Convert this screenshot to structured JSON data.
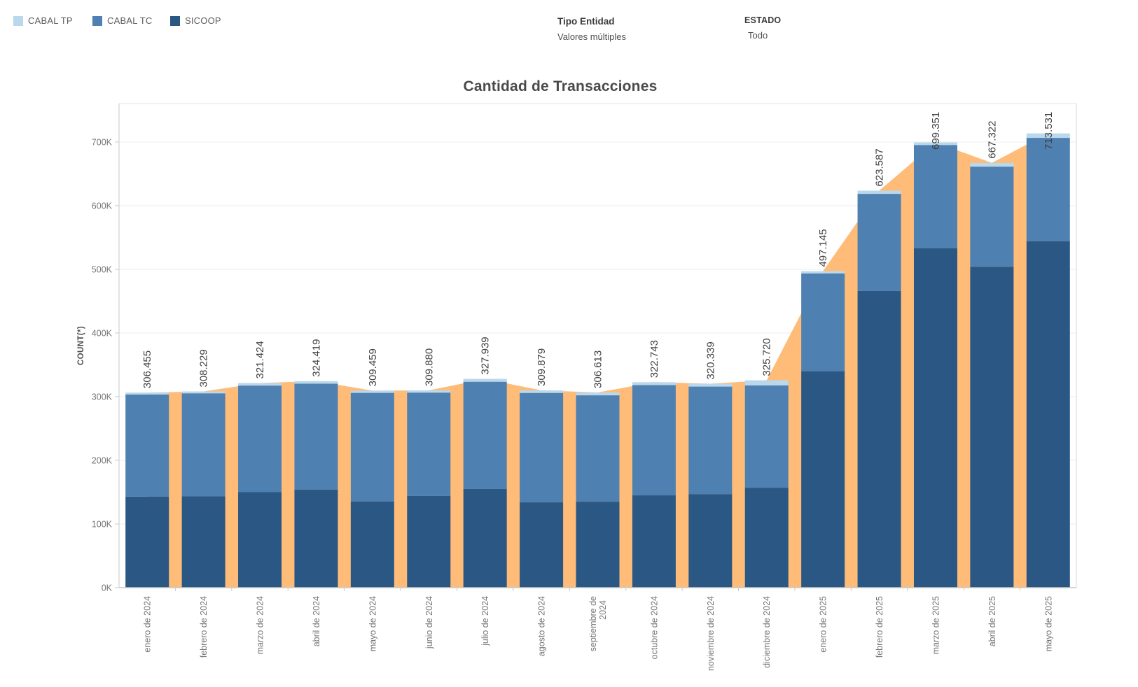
{
  "legend": {
    "items": [
      {
        "label": "CABAL TP",
        "color": "#B9D8EC"
      },
      {
        "label": "CABAL TC",
        "color": "#4E80B1"
      },
      {
        "label": "SICOOP",
        "color": "#2A5784"
      }
    ]
  },
  "filters": {
    "tipo_entidad": {
      "label": "Tipo Entidad",
      "value": "Valores múltiples"
    },
    "estado": {
      "label": "ESTADO",
      "value": "Todo"
    }
  },
  "chart_data": {
    "type": "bar",
    "subtype": "stacked-bars-with-area-overlay",
    "title": "Cantidad de Transacciones",
    "xlabel": "",
    "ylabel": "COUNT(*)",
    "ylim": [
      0,
      760000
    ],
    "ytick_interval": 100000,
    "yticks": [
      {
        "value": 0,
        "label": "0K"
      },
      {
        "value": 100000,
        "label": "100K"
      },
      {
        "value": 200000,
        "label": "200K"
      },
      {
        "value": 300000,
        "label": "300K"
      },
      {
        "value": 400000,
        "label": "400K"
      },
      {
        "value": 500000,
        "label": "500K"
      },
      {
        "value": 600000,
        "label": "600K"
      },
      {
        "value": 700000,
        "label": "700K"
      }
    ],
    "grid": true,
    "legend_position": "top-left",
    "categories": [
      "enero de 2024",
      "febrero de 2024",
      "marzo de 2024",
      "abril de 2024",
      "mayo de 2024",
      "junio de 2024",
      "julio de 2024",
      "agosto de 2024",
      "septiembre de\n2024",
      "octubre de 2024",
      "noviembre de 2024",
      "diciembre de 2024",
      "enero de 2025",
      "febrero de 2025",
      "marzo de 2025",
      "abril de 2025",
      "mayo de 2025"
    ],
    "series": [
      {
        "name": "SICOOP",
        "color": "#2A5784",
        "values": [
          143000,
          143500,
          150000,
          154000,
          135500,
          144000,
          155000,
          134000,
          135000,
          145000,
          147000,
          157000,
          340000,
          466000,
          533000,
          504000,
          544000
        ]
      },
      {
        "name": "CABAL TC",
        "color": "#4E80B1",
        "values": [
          160455,
          161729,
          167424,
          166419,
          170459,
          162380,
          168439,
          171879,
          167113,
          173243,
          168839,
          160720,
          153645,
          152587,
          162351,
          157322,
          162531
        ]
      },
      {
        "name": "CABAL TP",
        "color": "#B9D8EC",
        "values": [
          3000,
          3000,
          4000,
          4000,
          3500,
          3500,
          4500,
          4000,
          4500,
          4500,
          4500,
          8000,
          3500,
          5000,
          4000,
          6000,
          7000
        ]
      }
    ],
    "totals": [
      306455,
      308229,
      321424,
      324419,
      309459,
      309880,
      327939,
      309879,
      306613,
      322743,
      320339,
      325720,
      497145,
      623587,
      699351,
      667322,
      713531
    ],
    "total_labels": [
      "306.455",
      "308.229",
      "321.424",
      "324.419",
      "309.459",
      "309.880",
      "327.939",
      "309.879",
      "306.613",
      "322.743",
      "320.339",
      "325.720",
      "497.145",
      "623.587",
      "699.351",
      "667.322",
      "713.531"
    ],
    "area_overlay": {
      "name": "total-area",
      "color": "#FEBC78",
      "follows": "totals"
    }
  }
}
